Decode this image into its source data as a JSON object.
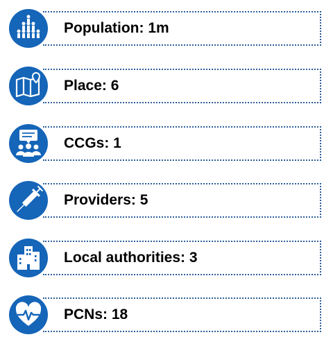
{
  "items": [
    {
      "label": "Population: 1m"
    },
    {
      "label": "Place: 6"
    },
    {
      "label": "CCGs: 1"
    },
    {
      "label": "Providers: 5"
    },
    {
      "label": "Local authorities: 3"
    },
    {
      "label": "PCNs: 18"
    }
  ]
}
